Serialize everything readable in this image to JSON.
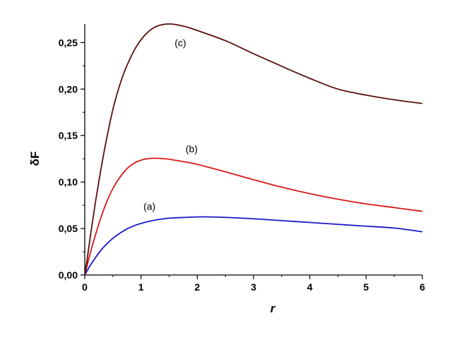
{
  "chart_data": {
    "type": "line",
    "xlabel": "r",
    "ylabel": "δF",
    "xlim": [
      0,
      6
    ],
    "ylim": [
      0,
      0.27
    ],
    "x_ticks": [
      0,
      1,
      2,
      3,
      4,
      5,
      6
    ],
    "x_tick_labels": [
      "0",
      "1",
      "2",
      "3",
      "4",
      "5",
      "6"
    ],
    "y_ticks": [
      0,
      0.05,
      0.1,
      0.15,
      0.2,
      0.25
    ],
    "y_tick_labels": [
      "0,00",
      "0,05",
      "0,10",
      "0,15",
      "0,20",
      "0,25"
    ],
    "grid": false,
    "series": [
      {
        "name": "(a)",
        "color": "#1818c8",
        "label_at": [
          1.15,
          0.07
        ],
        "x": [
          0,
          0.1,
          0.2,
          0.3,
          0.4,
          0.5,
          0.6,
          0.75,
          0.9,
          1.0,
          1.2,
          1.4,
          1.6,
          1.8,
          2.0,
          2.2,
          2.5,
          3.0,
          3.5,
          4.0,
          4.5,
          5.0,
          5.5,
          6.0
        ],
        "values": [
          0,
          0.0105,
          0.0195,
          0.0275,
          0.034,
          0.0395,
          0.044,
          0.0495,
          0.0535,
          0.0555,
          0.0585,
          0.0605,
          0.0615,
          0.062,
          0.0625,
          0.0625,
          0.062,
          0.0605,
          0.0585,
          0.0565,
          0.0545,
          0.0525,
          0.0505,
          0.0465
        ]
      },
      {
        "name": "(b)",
        "color": "#d81818",
        "label_at": [
          1.9,
          0.132
        ],
        "x": [
          0,
          0.05,
          0.1,
          0.2,
          0.3,
          0.4,
          0.5,
          0.6,
          0.7,
          0.8,
          0.9,
          1.0,
          1.1,
          1.2,
          1.3,
          1.5,
          1.7,
          2.0,
          2.5,
          3.0,
          3.5,
          4.0,
          4.5,
          5.0,
          5.5,
          6.0
        ],
        "values": [
          0,
          0.012,
          0.024,
          0.045,
          0.064,
          0.08,
          0.093,
          0.103,
          0.111,
          0.117,
          0.121,
          0.1235,
          0.125,
          0.1255,
          0.1255,
          0.1245,
          0.1225,
          0.119,
          0.111,
          0.1025,
          0.0945,
          0.0875,
          0.0815,
          0.0765,
          0.0725,
          0.0685
        ]
      },
      {
        "name": "(c)",
        "color": "#5a0e0e",
        "label_at": [
          1.7,
          0.246
        ],
        "x": [
          0,
          0.05,
          0.1,
          0.15,
          0.2,
          0.3,
          0.4,
          0.5,
          0.6,
          0.7,
          0.8,
          0.9,
          1.0,
          1.1,
          1.2,
          1.3,
          1.4,
          1.5,
          1.6,
          1.8,
          2.0,
          2.5,
          3.0,
          3.5,
          4.0,
          4.5,
          5.0,
          5.5,
          6.0
        ],
        "values": [
          0,
          0.02,
          0.042,
          0.062,
          0.082,
          0.118,
          0.15,
          0.178,
          0.2,
          0.218,
          0.232,
          0.244,
          0.253,
          0.26,
          0.265,
          0.268,
          0.2695,
          0.27,
          0.2695,
          0.267,
          0.263,
          0.252,
          0.238,
          0.2245,
          0.2115,
          0.2,
          0.1935,
          0.1885,
          0.1845
        ]
      }
    ]
  }
}
